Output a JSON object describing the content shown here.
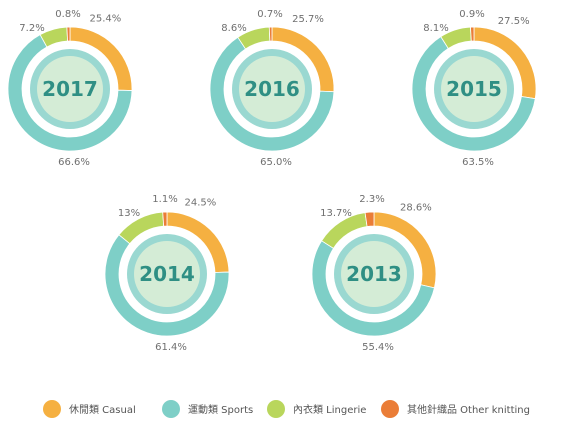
{
  "chart_data": {
    "type": "pie",
    "style": "donut",
    "series": [
      {
        "name": "休閒類 Casual",
        "color": "#f5b041"
      },
      {
        "name": "運動類 Sports",
        "color": "#7ecfc7"
      },
      {
        "name": "內衣類 Lingerie",
        "color": "#b9d65c"
      },
      {
        "name": "其他針織品 Other knitting",
        "color": "#ea7d37"
      }
    ],
    "charts": [
      {
        "year": "2017",
        "values": [
          25.4,
          66.6,
          7.2,
          0.8
        ],
        "labels": [
          "25.4%",
          "66.6%",
          "7.2%",
          "0.8%"
        ]
      },
      {
        "year": "2016",
        "values": [
          25.7,
          65.0,
          8.6,
          0.7
        ],
        "labels": [
          "25.7%",
          "65.0%",
          "8.6%",
          "0.7%"
        ]
      },
      {
        "year": "2015",
        "values": [
          27.5,
          63.5,
          8.1,
          0.9
        ],
        "labels": [
          "27.5%",
          "63.5%",
          "8.1%",
          "0.9%"
        ]
      },
      {
        "year": "2014",
        "values": [
          24.5,
          61.4,
          13,
          1.1
        ],
        "labels": [
          "24.5%",
          "61.4%",
          "13%",
          "1.1%"
        ]
      },
      {
        "year": "2013",
        "values": [
          28.6,
          55.4,
          13.7,
          2.3
        ],
        "labels": [
          "28.6%",
          "55.4%",
          "13.7%",
          "2.3%"
        ]
      }
    ],
    "legend_position": "bottom",
    "center_fill": "#d4ecd6",
    "inner_ring_color": "#9ad8d1",
    "year_label_color": "#2f8f84"
  }
}
